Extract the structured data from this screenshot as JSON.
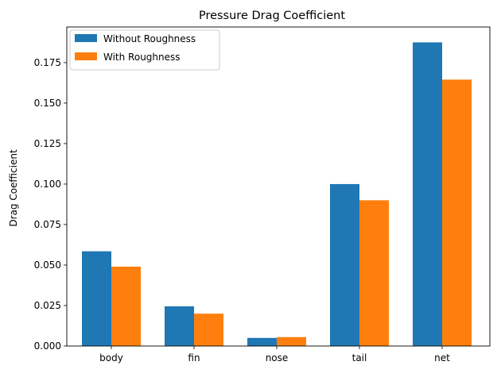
{
  "chart_data": {
    "type": "bar",
    "title": "Pressure Drag Coefficient",
    "xlabel": "",
    "ylabel": "Drag Coefficient",
    "categories": [
      "body",
      "fin",
      "nose",
      "tail",
      "net"
    ],
    "series": [
      {
        "name": "Without Roughness",
        "color": "#1f77b4",
        "values": [
          0.0585,
          0.0245,
          0.005,
          0.1,
          0.1875
        ]
      },
      {
        "name": "With Roughness",
        "color": "#ff7f0e",
        "values": [
          0.049,
          0.02,
          0.0055,
          0.09,
          0.1645
        ]
      }
    ],
    "ylim": [
      0,
      0.197
    ],
    "yticks": [
      "0.000",
      "0.025",
      "0.050",
      "0.075",
      "0.100",
      "0.125",
      "0.150",
      "0.175"
    ],
    "legend_position": "top-left",
    "grid": false
  }
}
